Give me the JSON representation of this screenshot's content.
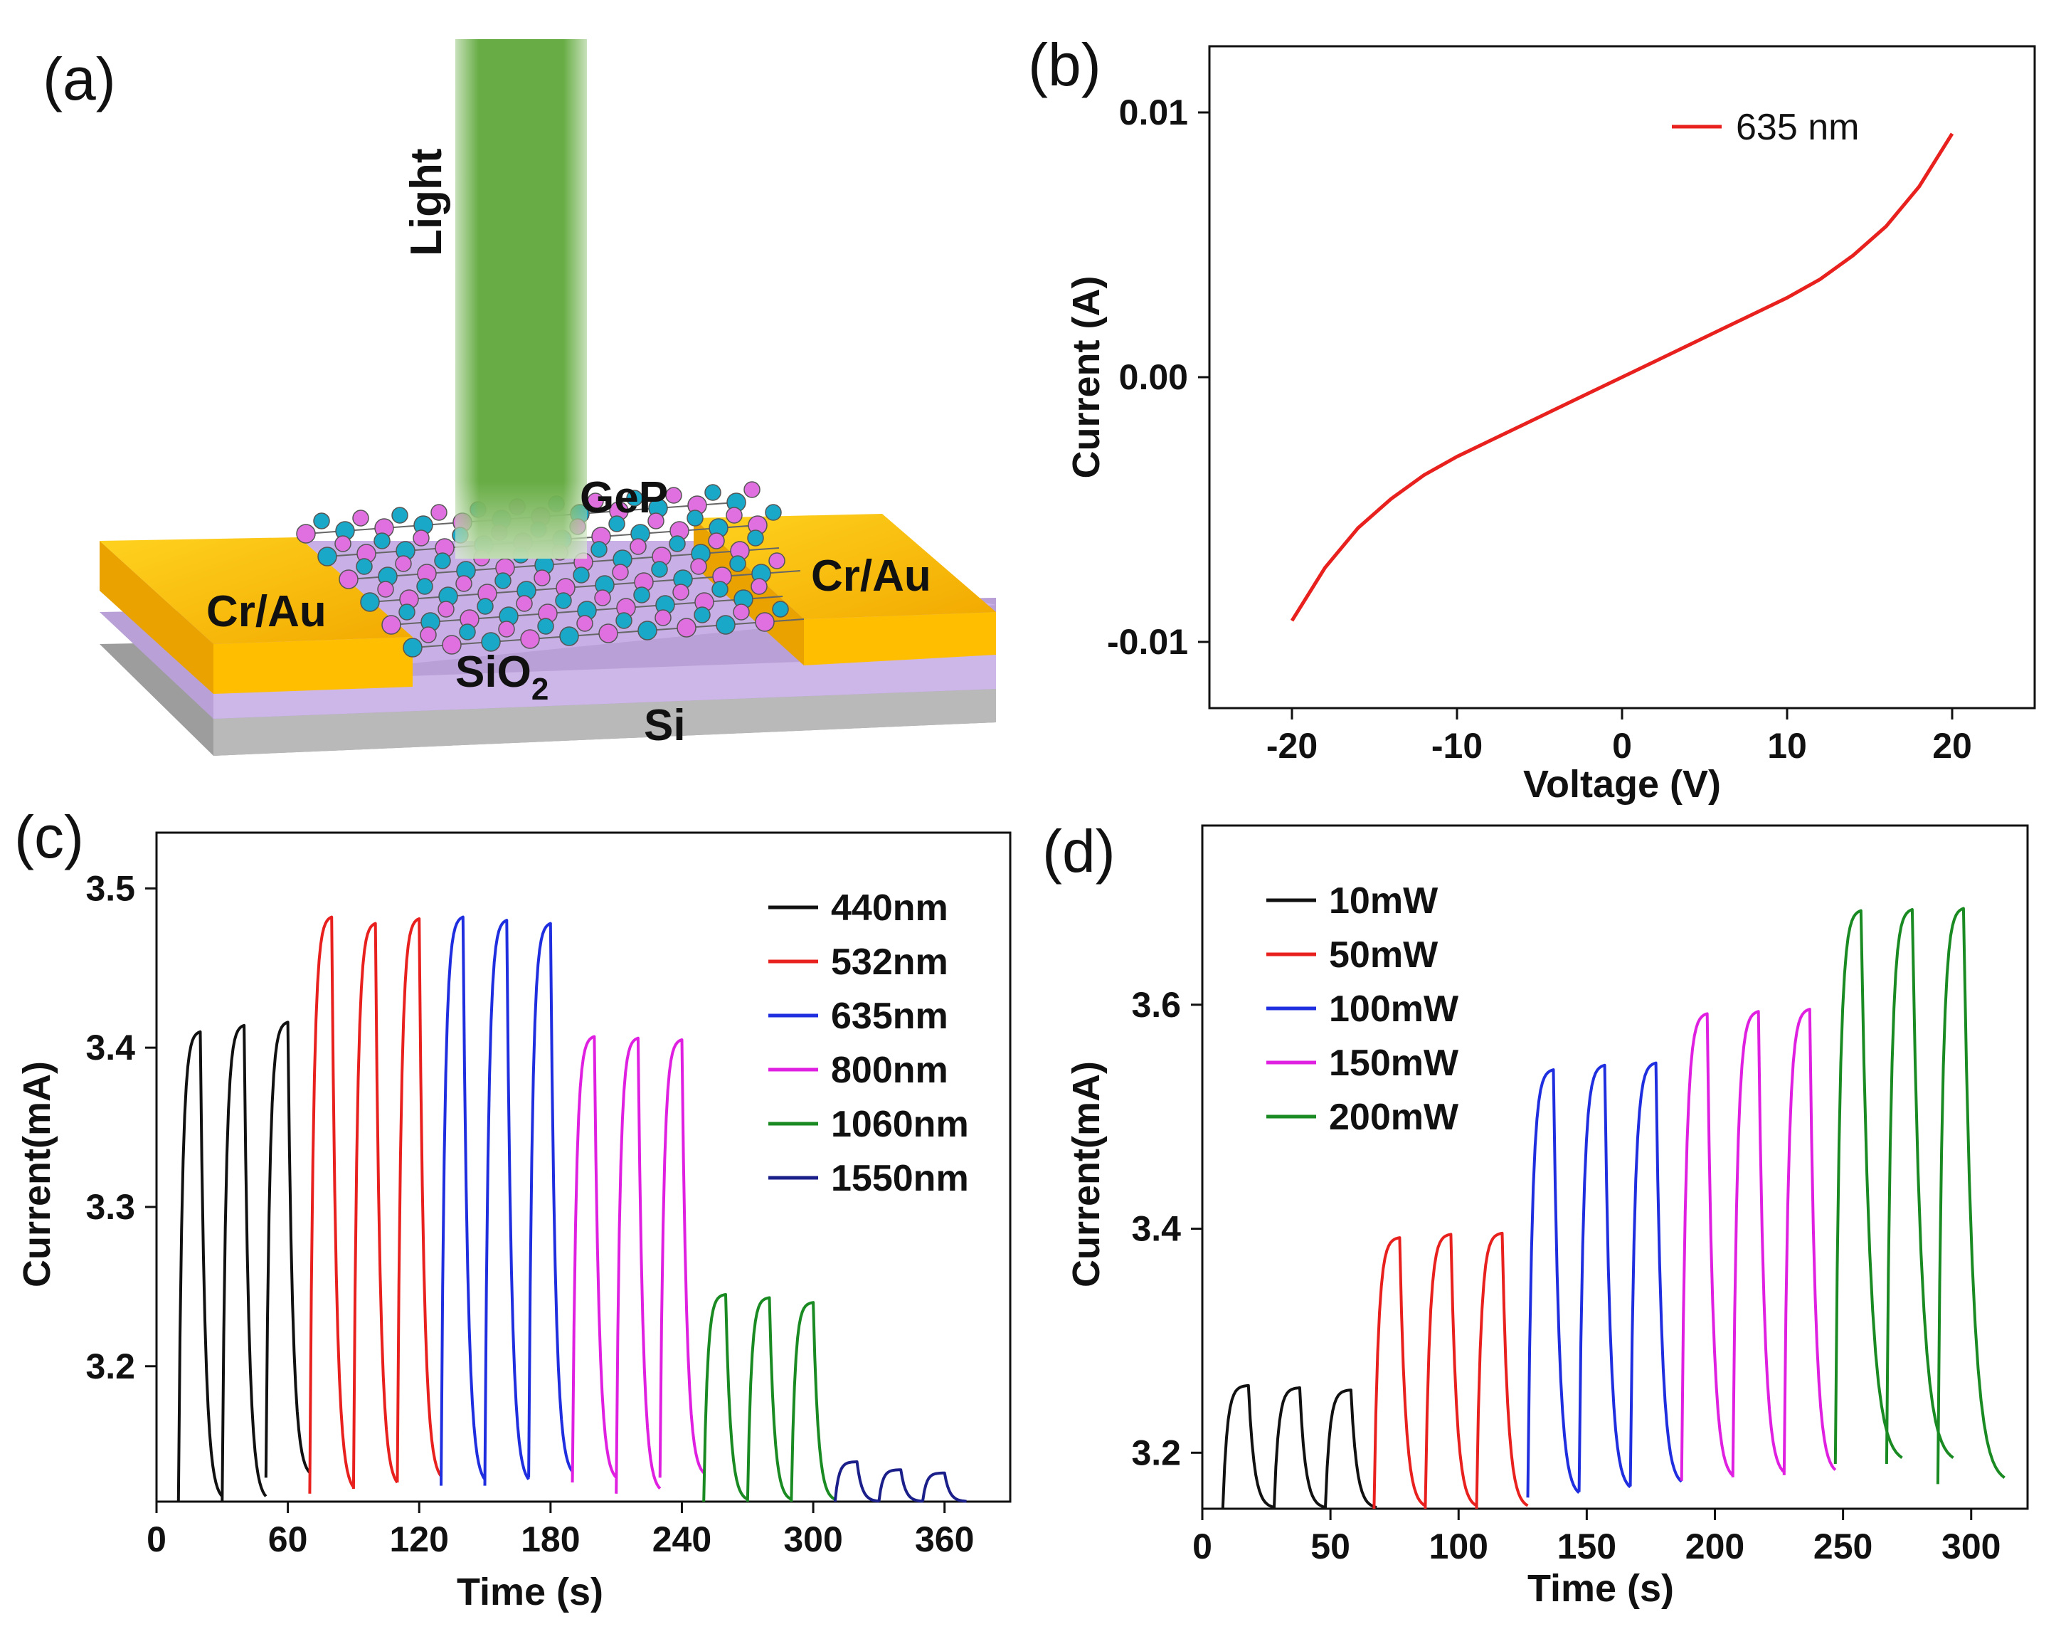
{
  "panel_labels": {
    "a": "(a)",
    "b": "(b)",
    "c": "(c)",
    "d": "(d)"
  },
  "diagram": {
    "light_label": "Light",
    "material_label": "GeP",
    "electrode_left": "Cr/Au",
    "electrode_right": "Cr/Au",
    "oxide_label": "SiO",
    "oxide_subscript": "2",
    "substrate_label": "Si",
    "colors": {
      "light": "#5fa83a",
      "gold": "#f3b400",
      "oxide": "#c7aee2",
      "substrate": "#9a9a9a",
      "atom_pink": "#e070e0",
      "atom_cyan": "#1aa8c8"
    }
  },
  "chart_data": [
    {
      "id": "b",
      "type": "line",
      "xlabel": "Voltage (V)",
      "ylabel": "Current (A)",
      "xlim": [
        -25,
        25
      ],
      "ylim": [
        -0.0125,
        0.0125
      ],
      "xticks": [
        -20,
        -10,
        0,
        10,
        20
      ],
      "xtick_labels": [
        "-20",
        "-10",
        "0",
        "10",
        "20"
      ],
      "yticks": [
        -0.01,
        0,
        0.01
      ],
      "ytick_labels": [
        "-0.01",
        "0.00",
        "0.01"
      ],
      "series": [
        {
          "name": "635 nm",
          "color": "#e8211e",
          "x": [
            -20,
            -18,
            -16,
            -14,
            -12,
            -10,
            -8,
            -6,
            -4,
            -2,
            0,
            2,
            4,
            6,
            8,
            10,
            12,
            14,
            16,
            18,
            20
          ],
          "y": [
            -0.0092,
            -0.0072,
            -0.0057,
            -0.0046,
            -0.0037,
            -0.003,
            -0.0024,
            -0.0018,
            -0.0012,
            -0.0006,
            0,
            0.0006,
            0.0012,
            0.0018,
            0.0024,
            0.003,
            0.0037,
            0.0046,
            0.0057,
            0.0072,
            0.0092
          ]
        }
      ],
      "legend_position": "top-right"
    },
    {
      "id": "c",
      "type": "line",
      "xlabel": "Time (s)",
      "ylabel": "Current(mA)",
      "xlim": [
        0,
        390
      ],
      "ylim": [
        3.115,
        3.535
      ],
      "xticks": [
        0,
        60,
        120,
        180,
        240,
        300,
        360
      ],
      "xtick_labels": [
        "0",
        "60",
        "120",
        "180",
        "240",
        "300",
        "360"
      ],
      "yticks": [
        3.2,
        3.3,
        3.4,
        3.5
      ],
      "ytick_labels": [
        "3.2",
        "3.3",
        "3.4",
        "3.5"
      ],
      "baseline": 3.115,
      "series": [
        {
          "name": "440nm",
          "color": "#111111",
          "on": [
            10,
            30,
            50
          ],
          "period_on": 10,
          "period_off": 10,
          "peaks": [
            3.41,
            3.414,
            3.416
          ],
          "dark": [
            3.115,
            3.115,
            3.13
          ]
        },
        {
          "name": "532nm",
          "color": "#e8211e",
          "on": [
            70,
            90,
            110
          ],
          "period_on": 10,
          "period_off": 10,
          "peaks": [
            3.482,
            3.478,
            3.481
          ],
          "dark": [
            3.12,
            3.123,
            3.127
          ]
        },
        {
          "name": "635nm",
          "color": "#1f2fe0",
          "on": [
            130,
            150,
            170
          ],
          "period_on": 10,
          "period_off": 10,
          "peaks": [
            3.482,
            3.48,
            3.478
          ],
          "dark": [
            3.125,
            3.125,
            3.13
          ]
        },
        {
          "name": "800nm",
          "color": "#e020e0",
          "on": [
            190,
            210,
            230
          ],
          "period_on": 10,
          "period_off": 10,
          "peaks": [
            3.407,
            3.406,
            3.405
          ],
          "dark": [
            3.127,
            3.12,
            3.13
          ]
        },
        {
          "name": "1060nm",
          "color": "#1a8a22",
          "on": [
            250,
            270,
            290
          ],
          "period_on": 10,
          "period_off": 10,
          "peaks": [
            3.245,
            3.243,
            3.24
          ],
          "dark": [
            3.115,
            3.115,
            3.115
          ]
        },
        {
          "name": "1550nm",
          "color": "#1b1f8a",
          "on": [
            310,
            330,
            350
          ],
          "period_on": 10,
          "period_off": 10,
          "peaks": [
            3.14,
            3.135,
            3.133
          ],
          "dark": [
            3.115,
            3.115,
            3.115
          ]
        }
      ],
      "legend_position": "top-right"
    },
    {
      "id": "d",
      "type": "line",
      "xlabel": "Time (s)",
      "ylabel": "Current(mA)",
      "xlim": [
        0,
        322
      ],
      "ylim": [
        3.15,
        3.76
      ],
      "xticks": [
        0,
        50,
        100,
        150,
        200,
        250,
        300
      ],
      "xtick_labels": [
        "0",
        "50",
        "100",
        "150",
        "200",
        "250",
        "300"
      ],
      "yticks": [
        3.2,
        3.4,
        3.6
      ],
      "ytick_labels": [
        "3.2",
        "3.4",
        "3.6"
      ],
      "baseline": 3.15,
      "series": [
        {
          "name": "10mW",
          "color": "#111111",
          "on": [
            8,
            28,
            48
          ],
          "period_on": 10,
          "period_off": 10,
          "peaks": [
            3.26,
            3.258,
            3.256
          ],
          "dark": [
            3.15,
            3.15,
            3.15
          ]
        },
        {
          "name": "50mW",
          "color": "#e8211e",
          "on": [
            67,
            87,
            107
          ],
          "period_on": 10,
          "period_off": 10,
          "peaks": [
            3.392,
            3.395,
            3.396
          ],
          "dark": [
            3.15,
            3.15,
            3.15
          ]
        },
        {
          "name": "100mW",
          "color": "#1f2fe0",
          "on": [
            127,
            147,
            167
          ],
          "period_on": 10,
          "period_off": 10,
          "peaks": [
            3.542,
            3.546,
            3.548
          ],
          "dark": [
            3.16,
            3.165,
            3.17
          ]
        },
        {
          "name": "150mW",
          "color": "#e020e0",
          "on": [
            187,
            207,
            227
          ],
          "period_on": 10,
          "period_off": 10,
          "peaks": [
            3.592,
            3.594,
            3.596
          ],
          "dark": [
            3.175,
            3.178,
            3.18
          ]
        },
        {
          "name": "200mW",
          "color": "#1a8a22",
          "on": [
            247,
            267,
            287
          ],
          "period_on": 10,
          "period_off": 16,
          "peaks": [
            3.684,
            3.685,
            3.686
          ],
          "dark": [
            3.19,
            3.19,
            3.172
          ]
        }
      ],
      "legend_position": "top-left"
    }
  ]
}
